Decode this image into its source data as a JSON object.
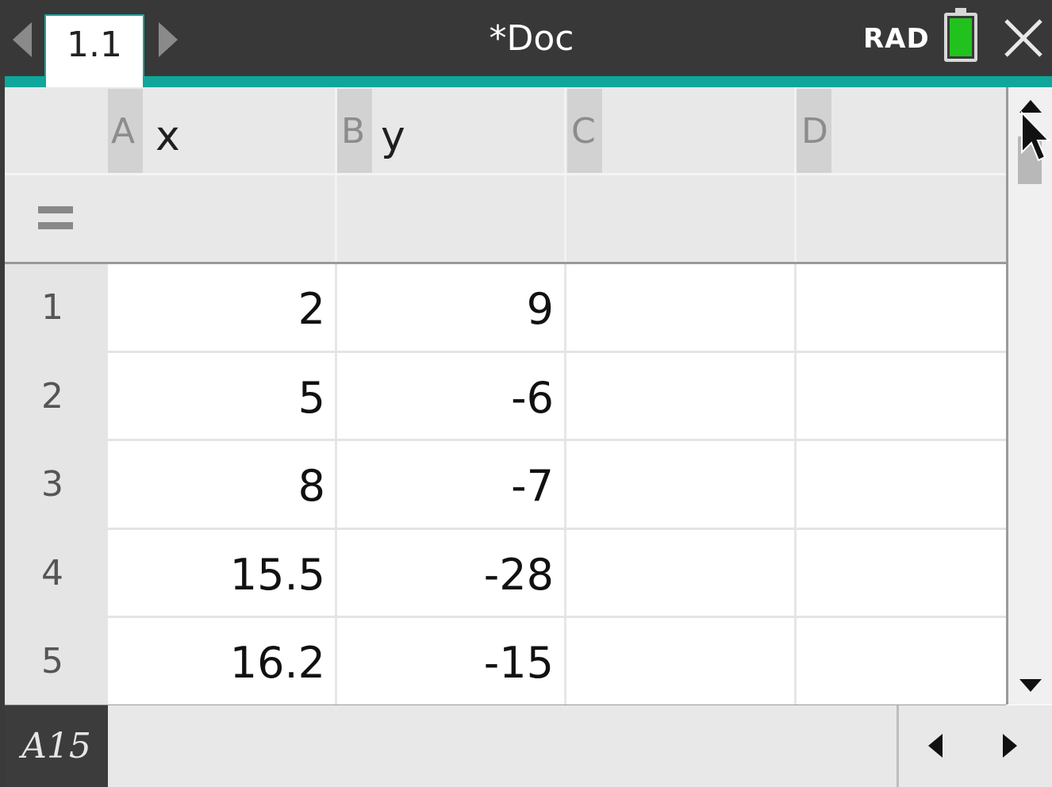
{
  "titlebar": {
    "tab_label": "1.1",
    "doc_title": "*Doc",
    "angle_mode": "RAD"
  },
  "columns": [
    {
      "letter": "A",
      "name": "x"
    },
    {
      "letter": "B",
      "name": "y"
    },
    {
      "letter": "C",
      "name": ""
    },
    {
      "letter": "D",
      "name": ""
    }
  ],
  "rows": [
    {
      "num": "1",
      "cells": [
        "2",
        "9",
        "",
        ""
      ]
    },
    {
      "num": "2",
      "cells": [
        "5",
        "-6",
        "",
        ""
      ]
    },
    {
      "num": "3",
      "cells": [
        "8",
        "-7",
        "",
        ""
      ]
    },
    {
      "num": "4",
      "cells": [
        "15.5",
        "-28",
        "",
        ""
      ]
    },
    {
      "num": "5",
      "cells": [
        "16.2",
        "-15",
        "",
        ""
      ]
    }
  ],
  "statusbar": {
    "cell_ref": "A15"
  },
  "colors": {
    "accent": "#0fa79b",
    "battery": "#22c21e",
    "titlebar": "#383838"
  }
}
